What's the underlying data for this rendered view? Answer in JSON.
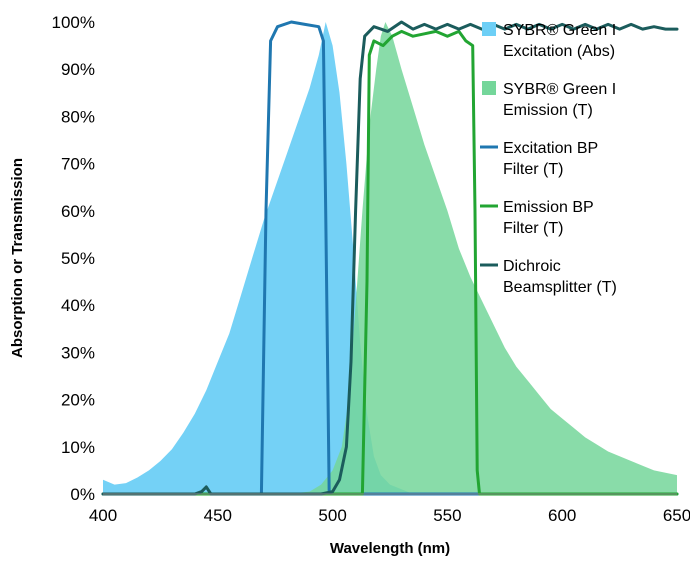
{
  "chart_data": {
    "type": "area",
    "xlabel": "Wavelength (nm)",
    "ylabel": "Absorption or Transmission",
    "xlim": [
      400,
      650
    ],
    "ylim": [
      0,
      100
    ],
    "x_ticks": [
      400,
      450,
      500,
      550,
      600,
      650
    ],
    "y_ticks": [
      0,
      10,
      20,
      30,
      40,
      50,
      60,
      70,
      80,
      90,
      100
    ],
    "y_tick_labels": [
      "0%",
      "10%",
      "20%",
      "30%",
      "40%",
      "50%",
      "60%",
      "70%",
      "80%",
      "90%",
      "100%"
    ],
    "grid": false,
    "legend_position": "right",
    "series": [
      {
        "name": "SYBR® Green I Excitation (Abs)",
        "legend_lines": [
          "SYBR® Green I",
          "Excitation (Abs)"
        ],
        "style": "area",
        "color": "#6dcff6",
        "points": [
          [
            400,
            3
          ],
          [
            405,
            2
          ],
          [
            410,
            2.3
          ],
          [
            415,
            3.5
          ],
          [
            420,
            5
          ],
          [
            425,
            7
          ],
          [
            430,
            9.5
          ],
          [
            435,
            13
          ],
          [
            440,
            17
          ],
          [
            445,
            22
          ],
          [
            450,
            28
          ],
          [
            455,
            34
          ],
          [
            460,
            42
          ],
          [
            465,
            50
          ],
          [
            470,
            58
          ],
          [
            475,
            65
          ],
          [
            480,
            72
          ],
          [
            485,
            79
          ],
          [
            490,
            86
          ],
          [
            494,
            93
          ],
          [
            497,
            100
          ],
          [
            500,
            95
          ],
          [
            503,
            85
          ],
          [
            506,
            70
          ],
          [
            509,
            52
          ],
          [
            512,
            32
          ],
          [
            515,
            17
          ],
          [
            518,
            8
          ],
          [
            521,
            4
          ],
          [
            525,
            2
          ],
          [
            530,
            1
          ],
          [
            535,
            0
          ]
        ]
      },
      {
        "name": "SYBR® Green I Emission (T)",
        "legend_lines": [
          "SYBR® Green I",
          "Emission (T)"
        ],
        "style": "area",
        "color": "#74d69a",
        "points": [
          [
            480,
            0
          ],
          [
            490,
            0.5
          ],
          [
            495,
            2
          ],
          [
            500,
            5
          ],
          [
            504,
            10
          ],
          [
            507,
            20
          ],
          [
            510,
            40
          ],
          [
            513,
            60
          ],
          [
            516,
            78
          ],
          [
            519,
            90
          ],
          [
            521,
            97
          ],
          [
            523,
            100
          ],
          [
            526,
            97
          ],
          [
            530,
            90
          ],
          [
            535,
            82
          ],
          [
            540,
            74
          ],
          [
            545,
            67
          ],
          [
            550,
            60
          ],
          [
            555,
            52
          ],
          [
            560,
            46
          ],
          [
            565,
            41
          ],
          [
            570,
            36
          ],
          [
            575,
            31
          ],
          [
            580,
            27
          ],
          [
            585,
            24
          ],
          [
            590,
            21
          ],
          [
            595,
            18
          ],
          [
            600,
            16
          ],
          [
            605,
            14
          ],
          [
            610,
            12
          ],
          [
            615,
            10.5
          ],
          [
            620,
            9
          ],
          [
            625,
            8
          ],
          [
            630,
            7
          ],
          [
            635,
            6
          ],
          [
            640,
            5
          ],
          [
            645,
            4.5
          ],
          [
            650,
            4
          ]
        ]
      },
      {
        "name": "Excitation BP Filter (T)",
        "legend_lines": [
          "Excitation BP",
          "Filter (T)"
        ],
        "style": "line",
        "color": "#1f77b0",
        "points": [
          [
            400,
            0
          ],
          [
            469,
            0
          ],
          [
            471,
            60
          ],
          [
            473,
            96
          ],
          [
            476,
            99
          ],
          [
            482,
            100
          ],
          [
            488,
            99.5
          ],
          [
            494,
            99
          ],
          [
            496,
            96
          ],
          [
            497,
            60
          ],
          [
            498.5,
            0
          ],
          [
            650,
            0
          ]
        ]
      },
      {
        "name": "Emission BP Filter (T)",
        "legend_lines": [
          "Emission BP",
          "Filter (T)"
        ],
        "style": "line",
        "color": "#22a532",
        "points": [
          [
            400,
            0
          ],
          [
            513,
            0
          ],
          [
            515,
            45
          ],
          [
            516,
            93
          ],
          [
            518,
            96
          ],
          [
            522,
            95
          ],
          [
            526,
            97
          ],
          [
            530,
            98
          ],
          [
            535,
            97
          ],
          [
            540,
            97.5
          ],
          [
            545,
            98
          ],
          [
            550,
            97
          ],
          [
            555,
            98
          ],
          [
            558,
            96
          ],
          [
            561,
            95
          ],
          [
            562,
            60
          ],
          [
            563,
            5
          ],
          [
            564,
            0
          ],
          [
            650,
            0
          ]
        ]
      },
      {
        "name": "Dichroic Beamsplitter (T)",
        "legend_lines": [
          "Dichroic",
          "Beamsplitter (T)"
        ],
        "style": "line",
        "color": "#1b5c5c",
        "points": [
          [
            400,
            0
          ],
          [
            440,
            0
          ],
          [
            443,
            0.5
          ],
          [
            445,
            1.5
          ],
          [
            447,
            0
          ],
          [
            495,
            0
          ],
          [
            500,
            0.5
          ],
          [
            503,
            3
          ],
          [
            506,
            10
          ],
          [
            508,
            28
          ],
          [
            510,
            60
          ],
          [
            512,
            88
          ],
          [
            514,
            97
          ],
          [
            518,
            99
          ],
          [
            524,
            98
          ],
          [
            530,
            100
          ],
          [
            535,
            98.5
          ],
          [
            540,
            99.5
          ],
          [
            545,
            98.5
          ],
          [
            550,
            99.5
          ],
          [
            555,
            98.5
          ],
          [
            560,
            99.5
          ],
          [
            565,
            98.5
          ],
          [
            570,
            99.5
          ],
          [
            575,
            98.5
          ],
          [
            580,
            99.5
          ],
          [
            585,
            98.5
          ],
          [
            590,
            99.5
          ],
          [
            595,
            98.5
          ],
          [
            600,
            99.5
          ],
          [
            605,
            98.5
          ],
          [
            610,
            99.5
          ],
          [
            615,
            98.5
          ],
          [
            620,
            99.5
          ],
          [
            625,
            98.5
          ],
          [
            630,
            99.5
          ],
          [
            635,
            98.5
          ],
          [
            640,
            99
          ],
          [
            645,
            98.5
          ],
          [
            650,
            98.5
          ]
        ]
      }
    ]
  }
}
